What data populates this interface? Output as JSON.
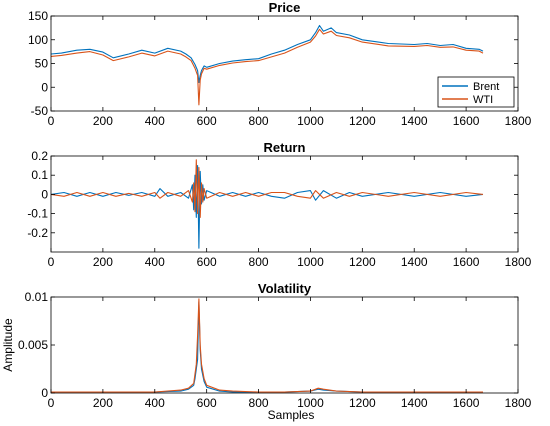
{
  "colors": {
    "brent": "#0072BD",
    "wti": "#D95319"
  },
  "xlabel": "Samples",
  "chart_data": [
    {
      "type": "line",
      "title": "Price",
      "xlabel": "",
      "ylabel": "",
      "xlim": [
        0,
        1800
      ],
      "ylim": [
        -50,
        150
      ],
      "xticks": [
        0,
        200,
        400,
        600,
        800,
        1000,
        1200,
        1400,
        1600,
        1800
      ],
      "yticks": [
        -50,
        0,
        50,
        100,
        150
      ],
      "legend": {
        "placement": "bottom-right",
        "entries": [
          "Brent",
          "WTI"
        ]
      },
      "series": [
        {
          "name": "Brent",
          "x": [
            0,
            40,
            100,
            150,
            200,
            240,
            300,
            350,
            400,
            450,
            500,
            520,
            540,
            555,
            565,
            570,
            575,
            580,
            590,
            600,
            650,
            700,
            750,
            800,
            850,
            900,
            950,
            1000,
            1020,
            1035,
            1050,
            1080,
            1100,
            1150,
            1200,
            1300,
            1400,
            1450,
            1500,
            1550,
            1600,
            1650,
            1665
          ],
          "y": [
            70,
            72,
            78,
            80,
            74,
            62,
            70,
            78,
            72,
            82,
            76,
            70,
            62,
            48,
            35,
            10,
            25,
            35,
            45,
            42,
            50,
            55,
            58,
            60,
            70,
            78,
            90,
            100,
            115,
            130,
            118,
            125,
            115,
            110,
            100,
            92,
            90,
            92,
            88,
            90,
            82,
            80,
            76
          ]
        },
        {
          "name": "WTI",
          "x": [
            0,
            40,
            100,
            150,
            200,
            240,
            300,
            350,
            400,
            450,
            500,
            520,
            540,
            555,
            565,
            570,
            575,
            580,
            590,
            600,
            650,
            700,
            750,
            800,
            850,
            900,
            950,
            1000,
            1020,
            1035,
            1050,
            1080,
            1100,
            1150,
            1200,
            1300,
            1400,
            1450,
            1500,
            1550,
            1600,
            1650,
            1665
          ],
          "y": [
            65,
            67,
            72,
            75,
            68,
            56,
            64,
            72,
            66,
            76,
            70,
            64,
            56,
            40,
            25,
            -37,
            15,
            28,
            40,
            38,
            46,
            51,
            54,
            56,
            64,
            72,
            84,
            95,
            108,
            122,
            112,
            118,
            109,
            104,
            95,
            87,
            86,
            88,
            84,
            85,
            78,
            76,
            72
          ]
        }
      ]
    },
    {
      "type": "line",
      "title": "Return",
      "xlabel": "",
      "ylabel": "",
      "xlim": [
        0,
        1800
      ],
      "ylim": [
        -0.3,
        0.2
      ],
      "xticks": [
        0,
        200,
        400,
        600,
        800,
        1000,
        1200,
        1400,
        1600,
        1800
      ],
      "yticks": [
        -0.2,
        -0.1,
        0,
        0.1,
        0.2
      ],
      "series": [
        {
          "name": "Brent",
          "x": [
            0,
            50,
            100,
            150,
            200,
            250,
            300,
            350,
            400,
            420,
            450,
            500,
            530,
            545,
            550,
            555,
            560,
            565,
            570,
            575,
            580,
            585,
            590,
            600,
            650,
            700,
            750,
            800,
            850,
            900,
            950,
            1000,
            1020,
            1050,
            1100,
            1150,
            1200,
            1300,
            1400,
            1500,
            1600,
            1665
          ],
          "y": [
            0,
            0.01,
            -0.01,
            0.01,
            -0.01,
            0.01,
            -0.005,
            0.01,
            -0.01,
            0.03,
            -0.01,
            0.01,
            -0.02,
            0.05,
            -0.08,
            0.1,
            -0.12,
            0.15,
            -0.28,
            0.12,
            -0.05,
            0.05,
            -0.03,
            0.02,
            -0.01,
            0.01,
            -0.01,
            0.01,
            -0.01,
            -0.02,
            0.01,
            0.02,
            -0.03,
            0.02,
            -0.02,
            0.01,
            -0.01,
            0.01,
            -0.01,
            0.01,
            -0.01,
            0
          ]
        },
        {
          "name": "WTI",
          "x": [
            0,
            50,
            100,
            150,
            200,
            250,
            300,
            350,
            400,
            420,
            450,
            500,
            530,
            545,
            550,
            555,
            560,
            565,
            570,
            575,
            580,
            585,
            590,
            600,
            650,
            700,
            750,
            800,
            850,
            900,
            950,
            1000,
            1020,
            1050,
            1100,
            1150,
            1200,
            1300,
            1400,
            1500,
            1600,
            1665
          ],
          "y": [
            0,
            -0.01,
            0.01,
            -0.01,
            0.01,
            -0.01,
            0.005,
            -0.01,
            0.01,
            -0.02,
            0.01,
            -0.01,
            0.02,
            -0.04,
            0.06,
            -0.09,
            0.18,
            -0.1,
            0.14,
            -0.12,
            0.06,
            -0.04,
            0.03,
            -0.02,
            0.01,
            -0.01,
            0.01,
            -0.01,
            0.01,
            0.01,
            -0.01,
            -0.02,
            0.02,
            -0.02,
            0.01,
            -0.01,
            0.01,
            -0.01,
            0.01,
            -0.01,
            0.01,
            0
          ]
        }
      ]
    },
    {
      "type": "line",
      "title": "Volatility",
      "xlabel": "Samples",
      "ylabel": "Amplitude",
      "xlim": [
        0,
        1800
      ],
      "ylim": [
        0,
        0.01
      ],
      "xticks": [
        0,
        200,
        400,
        600,
        800,
        1000,
        1200,
        1400,
        1600,
        1800
      ],
      "yticks": [
        0,
        0.005,
        0.01
      ],
      "series": [
        {
          "name": "Brent",
          "x": [
            0,
            100,
            200,
            300,
            400,
            500,
            530,
            550,
            555,
            560,
            565,
            570,
            575,
            580,
            590,
            600,
            650,
            700,
            800,
            900,
            1000,
            1030,
            1050,
            1100,
            1200,
            1300,
            1400,
            1500,
            1600,
            1665
          ],
          "y": [
            0.0001,
            0.0001,
            0.0001,
            0.0001,
            0.0001,
            0.0002,
            0.0004,
            0.0008,
            0.0015,
            0.0025,
            0.0035,
            0.0095,
            0.0045,
            0.0025,
            0.0012,
            0.0006,
            0.0002,
            0.0001,
            0.0001,
            0.0001,
            0.0002,
            0.0004,
            0.0003,
            0.0002,
            0.0001,
            0.0001,
            0.0001,
            0.0001,
            0.0001,
            0.0001
          ]
        },
        {
          "name": "WTI",
          "x": [
            0,
            100,
            200,
            300,
            400,
            500,
            530,
            550,
            555,
            560,
            565,
            570,
            575,
            580,
            590,
            600,
            650,
            700,
            800,
            900,
            1000,
            1030,
            1050,
            1100,
            1200,
            1300,
            1400,
            1500,
            1600,
            1665
          ],
          "y": [
            0.0001,
            0.0001,
            0.0001,
            0.0001,
            0.0001,
            0.0003,
            0.0005,
            0.001,
            0.002,
            0.003,
            0.006,
            0.0098,
            0.005,
            0.003,
            0.0015,
            0.0008,
            0.0003,
            0.0002,
            0.0001,
            0.0001,
            0.0002,
            0.0005,
            0.0004,
            0.0002,
            0.0001,
            0.0001,
            0.0001,
            0.0001,
            0.0001,
            0.0001
          ]
        }
      ]
    }
  ]
}
